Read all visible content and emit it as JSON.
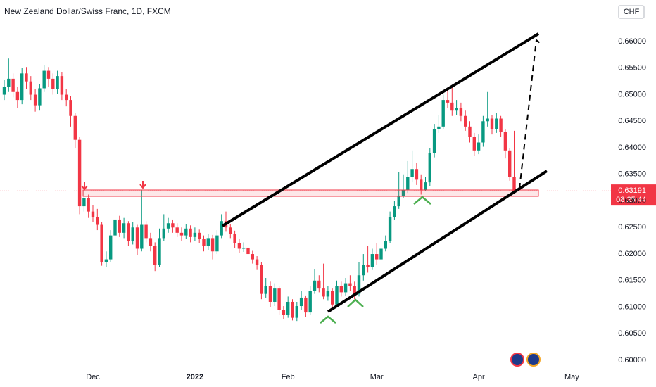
{
  "chart_data": {
    "type": "candlestick",
    "title": "New Zealand Dollar/Swiss Franc, 1D, FXCM",
    "currency": "CHF",
    "last_price_label": "0.63191",
    "countdown": "08:25:44",
    "up_color": "#089981",
    "down_color": "#f23645",
    "grid": false,
    "categories": [
      null,
      null,
      null,
      null,
      null,
      null,
      null,
      null,
      null,
      null,
      null,
      null,
      null,
      null,
      null,
      null,
      null,
      null,
      null,
      null,
      "Dec",
      null,
      null,
      null,
      null,
      null,
      null,
      null,
      null,
      null,
      null,
      null,
      null,
      null,
      null,
      null,
      null,
      null,
      null,
      null,
      null,
      null,
      null,
      "2022",
      null,
      null,
      null,
      null,
      null,
      null,
      null,
      null,
      null,
      null,
      null,
      null,
      null,
      null,
      null,
      null,
      null,
      null,
      null,
      null,
      "Feb",
      null,
      null,
      null,
      null,
      null,
      null,
      null,
      null,
      null,
      null,
      null,
      null,
      null,
      null,
      null,
      null,
      null,
      null,
      null,
      "Mar",
      null,
      null,
      null,
      null,
      null,
      null,
      null,
      null,
      null,
      null,
      null,
      null,
      null,
      null,
      null,
      null,
      null,
      null,
      null,
      null,
      null,
      null,
      "Apr",
      null,
      null,
      null,
      null,
      null,
      null,
      null,
      null,
      null,
      null,
      null,
      null,
      null,
      null,
      null,
      null,
      null,
      null,
      null,
      null,
      "May"
    ],
    "open": [
      0.65,
      0.6515,
      0.653,
      0.6505,
      0.649,
      0.654,
      0.6525,
      0.65,
      0.648,
      0.6512,
      0.6545,
      0.653,
      0.651,
      0.6535,
      0.65,
      0.649,
      0.646,
      0.6415,
      0.629,
      0.6305,
      0.628,
      0.627,
      0.6255,
      0.6185,
      0.619,
      0.6235,
      0.6265,
      0.624,
      0.6258,
      0.6225,
      0.625,
      0.621,
      0.6255,
      0.623,
      0.6215,
      0.618,
      0.623,
      0.6248,
      0.6258,
      0.625,
      0.624,
      0.6235,
      0.6248,
      0.6232,
      0.624,
      0.6228,
      0.6215,
      0.623,
      0.6205,
      0.6235,
      0.6262,
      0.625,
      0.6238,
      0.622,
      0.621,
      0.6212,
      0.62,
      0.619,
      0.618,
      0.6125,
      0.614,
      0.611,
      0.6135,
      0.6095,
      0.6085,
      0.611,
      0.608,
      0.6102,
      0.6118,
      0.609,
      0.613,
      0.615,
      0.6135,
      0.612,
      0.613,
      0.6105,
      0.614,
      0.6128,
      0.6145,
      0.614,
      0.6125,
      0.616,
      0.618,
      0.6175,
      0.62,
      0.619,
      0.621,
      0.6225,
      0.627,
      0.629,
      0.631,
      0.632,
      0.6345,
      0.636,
      0.634,
      0.632,
      0.6335,
      0.639,
      0.6435,
      0.644,
      0.649,
      0.6485,
      0.647,
      0.6475,
      0.646,
      0.644,
      0.642,
      0.6395,
      0.641,
      0.645,
      0.6455,
      0.6435,
      0.6455,
      0.643,
      0.6395,
      0.6345,
      null,
      null,
      null,
      null,
      null,
      null,
      null,
      null,
      null,
      null,
      null,
      null,
      null
    ],
    "high": [
      0.6528,
      0.6568,
      0.654,
      0.6515,
      0.655,
      0.6552,
      0.6535,
      0.651,
      0.652,
      0.6555,
      0.6552,
      0.654,
      0.6545,
      0.6542,
      0.651,
      0.6498,
      0.6465,
      0.642,
      0.632,
      0.6312,
      0.6292,
      0.6285,
      0.626,
      0.6205,
      0.6245,
      0.6275,
      0.6272,
      0.6268,
      0.6262,
      0.626,
      0.6255,
      0.632,
      0.6262,
      0.624,
      0.6222,
      0.6248,
      0.6275,
      0.6268,
      0.6265,
      0.6258,
      0.625,
      0.6256,
      0.6254,
      0.625,
      0.6246,
      0.6235,
      0.6238,
      0.6236,
      0.6245,
      0.6275,
      0.628,
      0.6256,
      0.6244,
      0.6228,
      0.6222,
      0.6218,
      0.6206,
      0.6196,
      0.6185,
      0.6155,
      0.6148,
      0.6145,
      0.614,
      0.6102,
      0.612,
      0.6115,
      0.611,
      0.613,
      0.6122,
      0.614,
      0.6172,
      0.616,
      0.6182,
      0.614,
      0.6135,
      0.615,
      0.6148,
      0.6155,
      0.616,
      0.6148,
      0.6185,
      0.62,
      0.6215,
      0.621,
      0.622,
      0.6245,
      0.6235,
      0.628,
      0.63,
      0.6355,
      0.635,
      0.6375,
      0.6395,
      0.6372,
      0.635,
      0.6345,
      0.64,
      0.6445,
      0.6462,
      0.65,
      0.6512,
      0.6515,
      0.649,
      0.6485,
      0.647,
      0.645,
      0.6428,
      0.6425,
      0.646,
      0.6505,
      0.6462,
      0.6465,
      0.646,
      0.6435,
      0.64,
      0.6432,
      null,
      null,
      null,
      null,
      null,
      null,
      null,
      null,
      null,
      null,
      null,
      null,
      null
    ],
    "low": [
      0.649,
      0.6505,
      0.6495,
      0.6475,
      0.6482,
      0.651,
      0.649,
      0.6468,
      0.647,
      0.6505,
      0.6515,
      0.65,
      0.6502,
      0.649,
      0.6478,
      0.644,
      0.64,
      0.6275,
      0.628,
      0.6268,
      0.626,
      0.6245,
      0.6178,
      0.6175,
      0.6185,
      0.6228,
      0.6232,
      0.623,
      0.6215,
      0.6218,
      0.6198,
      0.6205,
      0.6222,
      0.6205,
      0.6168,
      0.6175,
      0.6225,
      0.624,
      0.624,
      0.6232,
      0.6225,
      0.6228,
      0.6222,
      0.6224,
      0.622,
      0.6205,
      0.6208,
      0.619,
      0.62,
      0.623,
      0.6242,
      0.623,
      0.6212,
      0.6202,
      0.6204,
      0.6192,
      0.6182,
      0.617,
      0.6115,
      0.6118,
      0.61,
      0.6102,
      0.6085,
      0.6078,
      0.608,
      0.6075,
      0.6074,
      0.6095,
      0.6082,
      0.6086,
      0.6125,
      0.6128,
      0.6115,
      0.6112,
      0.6095,
      0.61,
      0.612,
      0.6122,
      0.613,
      0.6115,
      0.612,
      0.615,
      0.6165,
      0.617,
      0.618,
      0.6185,
      0.6205,
      0.622,
      0.6265,
      0.6285,
      0.6305,
      0.6315,
      0.6335,
      0.633,
      0.6312,
      0.6318,
      0.6328,
      0.6382,
      0.6428,
      0.6435,
      0.6475,
      0.646,
      0.6462,
      0.645,
      0.6432,
      0.641,
      0.6385,
      0.6388,
      0.6402,
      0.644,
      0.6425,
      0.6428,
      0.642,
      0.638,
      0.6338,
      0.6315,
      null,
      null,
      null,
      null,
      null,
      null,
      null,
      null,
      null,
      null,
      null,
      null,
      null
    ],
    "close": [
      0.6515,
      0.653,
      0.6505,
      0.649,
      0.654,
      0.6525,
      0.65,
      0.648,
      0.6512,
      0.6545,
      0.653,
      0.651,
      0.6535,
      0.65,
      0.649,
      0.646,
      0.6415,
      0.629,
      0.6305,
      0.628,
      0.627,
      0.6255,
      0.6185,
      0.619,
      0.6235,
      0.6265,
      0.624,
      0.6258,
      0.6225,
      0.625,
      0.621,
      0.6255,
      0.623,
      0.6215,
      0.618,
      0.623,
      0.6248,
      0.6258,
      0.625,
      0.624,
      0.6235,
      0.6248,
      0.6232,
      0.624,
      0.6228,
      0.6215,
      0.623,
      0.6205,
      0.6235,
      0.6262,
      0.625,
      0.6238,
      0.622,
      0.621,
      0.6212,
      0.62,
      0.619,
      0.618,
      0.6125,
      0.614,
      0.611,
      0.6135,
      0.6095,
      0.6085,
      0.611,
      0.608,
      0.6102,
      0.6118,
      0.609,
      0.613,
      0.615,
      0.6135,
      0.612,
      0.613,
      0.6105,
      0.614,
      0.6128,
      0.6145,
      0.614,
      0.6125,
      0.616,
      0.618,
      0.6175,
      0.62,
      0.619,
      0.621,
      0.6225,
      0.627,
      0.629,
      0.631,
      0.632,
      0.6345,
      0.636,
      0.634,
      0.632,
      0.6335,
      0.639,
      0.6435,
      0.644,
      0.649,
      0.6485,
      0.647,
      0.6475,
      0.646,
      0.644,
      0.642,
      0.6395,
      0.641,
      0.645,
      0.6455,
      0.6435,
      0.6455,
      0.643,
      0.6395,
      0.6345,
      0.63191,
      null,
      null,
      null,
      null,
      null,
      null,
      null,
      null,
      null,
      null,
      null,
      null,
      null
    ],
    "ylim": [
      0.59868,
      0.66782
    ],
    "yticks": [
      {
        "value": 0.6,
        "label": "0.60000"
      },
      {
        "value": 0.605,
        "label": "0.60500"
      },
      {
        "value": 0.61,
        "label": "0.61000"
      },
      {
        "value": 0.615,
        "label": "0.61500"
      },
      {
        "value": 0.62,
        "label": "0.62000"
      },
      {
        "value": 0.625,
        "label": "0.62500"
      },
      {
        "value": 0.63,
        "label": "0.63000"
      },
      {
        "value": 0.635,
        "label": "0.63500"
      },
      {
        "value": 0.64,
        "label": "0.64000"
      },
      {
        "value": 0.645,
        "label": "0.64500"
      },
      {
        "value": 0.65,
        "label": "0.65000"
      },
      {
        "value": 0.655,
        "label": "0.65500"
      },
      {
        "value": 0.66,
        "label": "0.66000"
      }
    ]
  }
}
